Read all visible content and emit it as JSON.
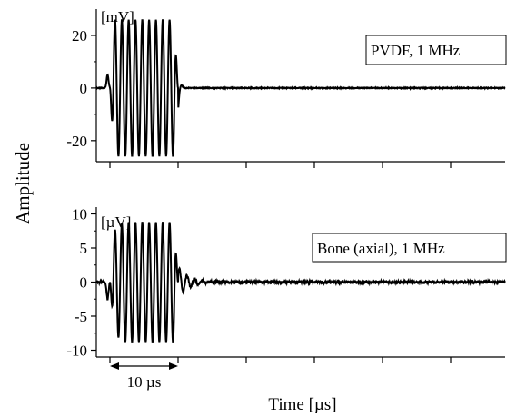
{
  "ylabel": "Amplitude",
  "xlabel": "Time [µs]",
  "duration_annotation": "10 µs",
  "chart_data": [
    {
      "type": "line",
      "panel": "top",
      "unit": "[mV]",
      "legend": "PVDF, 1 MHz",
      "ylim": [
        -28,
        30
      ],
      "yticks": [
        20,
        0,
        -20
      ],
      "ytick_labels": [
        "20",
        "0",
        "-20"
      ],
      "xlim": [
        -2,
        58
      ],
      "x_ticks": [
        0,
        10,
        20,
        30,
        40,
        50
      ],
      "burst": {
        "start": 0,
        "end": 10,
        "cycles": 10,
        "amplitude": 26,
        "precursor_amplitude": 5,
        "tail_dip": -9
      },
      "noise_amplitude": 0.3
    },
    {
      "type": "line",
      "panel": "bottom",
      "unit": "[µV]",
      "legend": "Bone (axial), 1 MHz",
      "ylim": [
        -11,
        11
      ],
      "yticks": [
        10,
        5,
        0,
        -5,
        -10
      ],
      "ytick_labels": [
        "10",
        "5",
        "0",
        "-5",
        "-10"
      ],
      "xlim": [
        -2,
        58
      ],
      "x_ticks": [
        0,
        10,
        20,
        30,
        40,
        50
      ],
      "burst": {
        "start": 0,
        "end": 10,
        "cycles": 10,
        "amplitude": 8.8,
        "precursor_amplitude": -2.5,
        "tail_ripple": 2.2
      },
      "noise_amplitude": 0.3
    }
  ]
}
